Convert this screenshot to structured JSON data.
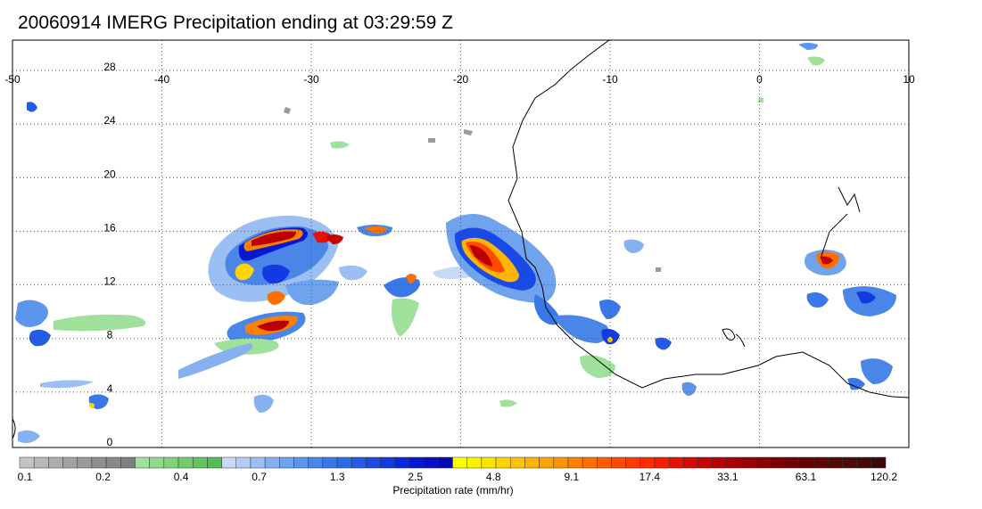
{
  "title": "20060914 IMERG Precipitation ending at 03:29:59 Z",
  "map": {
    "lon_labels": [
      "-50",
      "-40",
      "-30",
      "-20",
      "-10",
      "0",
      "10"
    ],
    "lat_labels": [
      "28",
      "24",
      "20",
      "16",
      "12",
      "8",
      "4",
      "0"
    ],
    "frame_color": "#000000",
    "grid_style": "dotted",
    "coastline_color": "#000000"
  },
  "colorbar": {
    "title": "Precipitation rate (mm/hr)",
    "tick_labels": [
      "0.1",
      "0.2",
      "0.4",
      "0.7",
      "1.3",
      "2.5",
      "4.8",
      "9.1",
      "17.4",
      "33.1",
      "63.1",
      "120.2"
    ],
    "colors": [
      "#c4c4c4",
      "#b8b8b8",
      "#adadad",
      "#a3a3a3",
      "#9a9a9a",
      "#8f8f8f",
      "#888888",
      "#7f7f7f",
      "#9fe19a",
      "#8fd98a",
      "#80d27b",
      "#72cb6d",
      "#63c35f",
      "#55bc53",
      "#c8d8f7",
      "#b2ccf5",
      "#9cbff3",
      "#86b1f1",
      "#6fa3ee",
      "#5c95ec",
      "#4a86e8",
      "#3a78e8",
      "#2d6ae8",
      "#215be6",
      "#1a4ae5",
      "#1239e2",
      "#0a28df",
      "#0518d6",
      "#0510c4",
      "#0508b0",
      "#ffff00",
      "#fff200",
      "#ffe300",
      "#ffd400",
      "#ffc400",
      "#ffb400",
      "#ffa300",
      "#ff9200",
      "#ff8000",
      "#ff6f00",
      "#ff5c00",
      "#ff4a00",
      "#ff3a00",
      "#ff2a00",
      "#f51c00",
      "#e81000",
      "#d80800",
      "#c80400",
      "#b80000",
      "#a80000",
      "#980000",
      "#880000",
      "#7a0000",
      "#6e0000",
      "#640000",
      "#5c0606",
      "#540808",
      "#4c0a0a",
      "#440a0a",
      "#3c0808"
    ]
  }
}
